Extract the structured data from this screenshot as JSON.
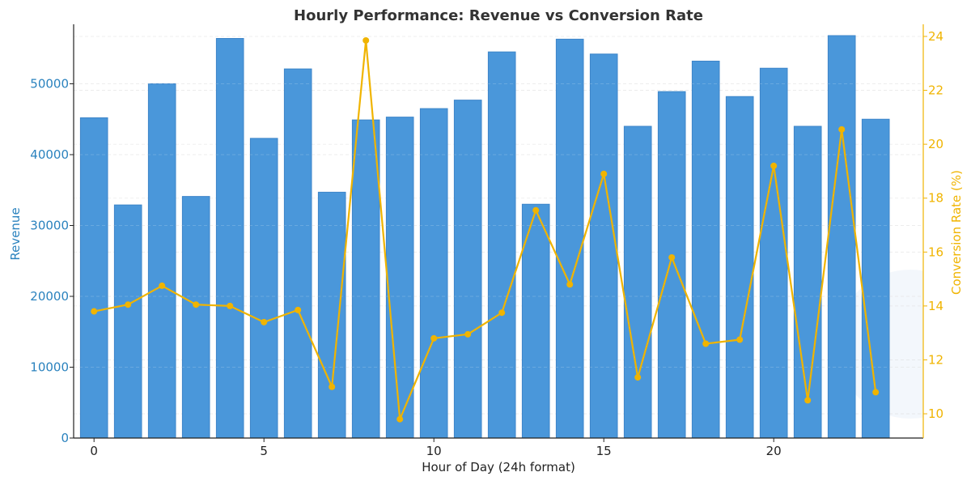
{
  "chart_data": {
    "type": "bar",
    "title": "Hourly Performance: Revenue vs Conversion Rate",
    "xlabel": "Hour of Day (24h format)",
    "ylabel": "Revenue",
    "y2label": "Conversion Rate (%)",
    "categories": [
      0,
      1,
      2,
      3,
      4,
      5,
      6,
      7,
      8,
      9,
      10,
      11,
      12,
      13,
      14,
      15,
      16,
      17,
      18,
      19,
      20,
      21,
      22,
      23
    ],
    "x_ticks": [
      0,
      5,
      10,
      15,
      20
    ],
    "xlim": [
      -0.6,
      24.4
    ],
    "ylim": [
      0,
      58400
    ],
    "y_ticks": [
      0,
      10000,
      20000,
      30000,
      40000,
      50000
    ],
    "y2lim": [
      9.1,
      24.45
    ],
    "y2_ticks": [
      10,
      12,
      14,
      16,
      18,
      20,
      22,
      24
    ],
    "grid": true,
    "colors": {
      "bar": "#4a97da",
      "bar_edge": "#3d85c9",
      "line": "#f0b400",
      "left_axis": "#2a82be",
      "right_axis": "#f0b400",
      "title": "#333333"
    },
    "series": [
      {
        "name": "Revenue",
        "type": "bar",
        "axis": "left",
        "values": [
          45200,
          32900,
          50000,
          34100,
          56400,
          42300,
          52100,
          34700,
          44900,
          45300,
          46500,
          47700,
          54500,
          33000,
          56300,
          54200,
          44000,
          48900,
          53200,
          48200,
          52200,
          44000,
          56800,
          45000
        ]
      },
      {
        "name": "Conversion Rate (%)",
        "type": "line",
        "axis": "right",
        "values": [
          13.8,
          14.05,
          14.75,
          14.05,
          14.0,
          13.4,
          13.85,
          11.0,
          23.85,
          9.8,
          12.8,
          12.95,
          13.75,
          17.55,
          14.8,
          18.9,
          11.35,
          15.8,
          12.6,
          12.75,
          19.2,
          10.5,
          20.55,
          10.8
        ]
      }
    ]
  }
}
